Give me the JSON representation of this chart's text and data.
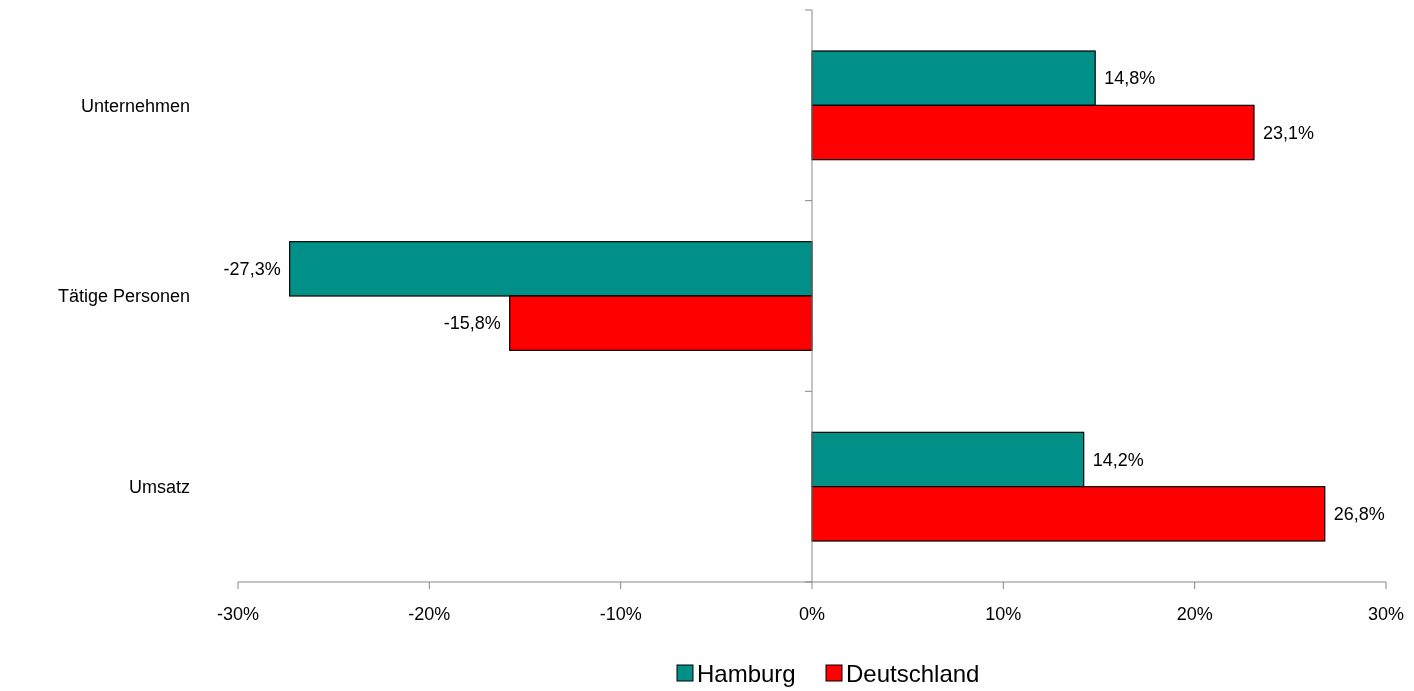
{
  "chart_data": {
    "type": "bar",
    "orientation": "horizontal",
    "categories": [
      "Unternehmen",
      "Tätige Personen",
      "Umsatz"
    ],
    "series": [
      {
        "name": "Hamburg",
        "color": "#009088",
        "values": [
          14.8,
          -27.3,
          14.2
        ],
        "value_labels": [
          "14,8%",
          "-27,3%",
          "14,2%"
        ]
      },
      {
        "name": "Deutschland",
        "color": "#ff0000",
        "values": [
          23.1,
          -15.8,
          26.8
        ],
        "value_labels": [
          "23,1%",
          "-15,8%",
          "26,8%"
        ]
      }
    ],
    "xlim": [
      -30,
      30
    ],
    "xticks": [
      {
        "value": -30,
        "label": "-30%"
      },
      {
        "value": -20,
        "label": "-20%"
      },
      {
        "value": -10,
        "label": "-10%"
      },
      {
        "value": 0,
        "label": "0%"
      },
      {
        "value": 10,
        "label": "10%"
      },
      {
        "value": 20,
        "label": "20%"
      },
      {
        "value": 30,
        "label": "30%"
      }
    ],
    "legend": "bottom"
  }
}
